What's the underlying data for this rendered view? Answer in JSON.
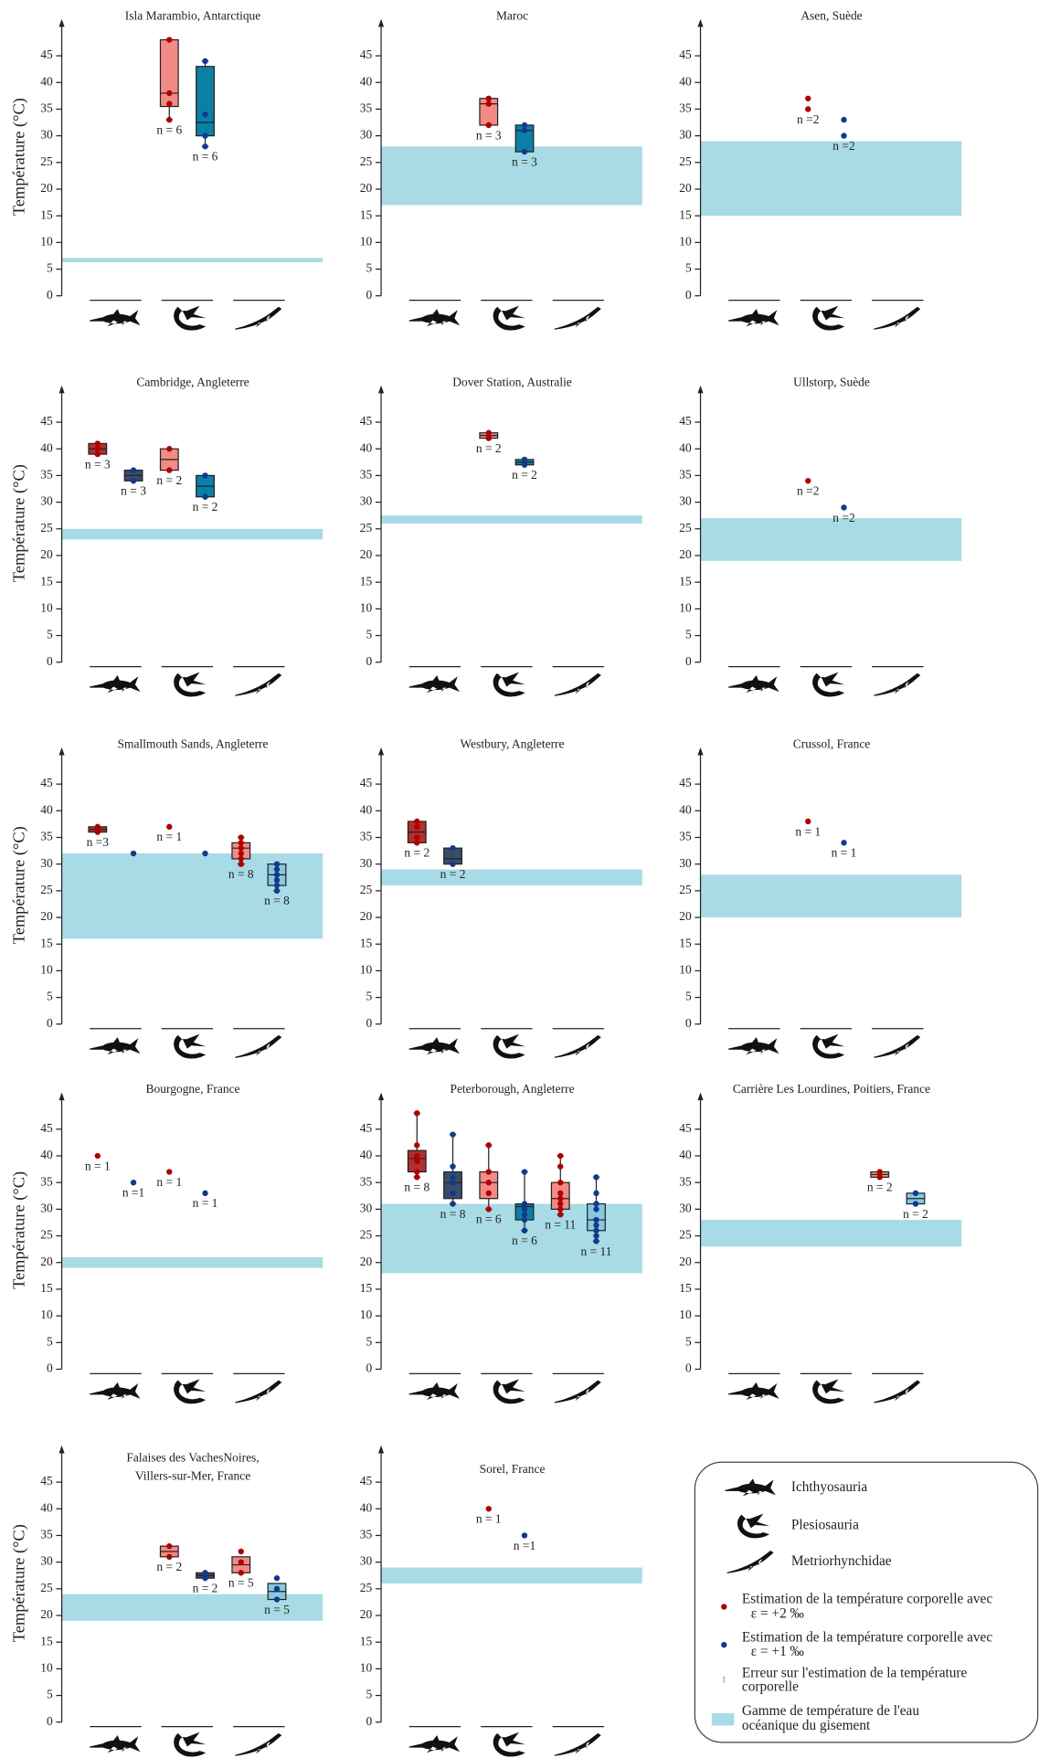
{
  "chart_data": [
    {
      "type": "box",
      "title": "Isla Marambio, Antarctique",
      "ylabel": "Température (°C)",
      "ylim": [
        0,
        50
      ],
      "yticks": [
        0,
        5,
        10,
        15,
        20,
        25,
        30,
        35,
        40,
        45
      ],
      "band": [
        6.3,
        7.1
      ],
      "series": [
        {
          "color": "#b00000",
          "groups": [
            null,
            {
              "points": [
                48,
                38,
                36,
                33
              ],
              "box": [
                35.5,
                38,
                48
              ],
              "whiskers": [
                33,
                48
              ],
              "fill": "#f28b86",
              "n_label": "n = 6"
            },
            null
          ]
        },
        {
          "color": "#123a8a",
          "groups": [
            null,
            {
              "points": [
                44,
                34,
                30,
                28
              ],
              "box": [
                30,
                32.5,
                43
              ],
              "whiskers": [
                28,
                44
              ],
              "fill": "#0b7fa6",
              "n_label": "n = 6"
            },
            null
          ]
        }
      ]
    },
    {
      "type": "box",
      "title": "Maroc",
      "ylim": [
        0,
        50
      ],
      "yticks": [
        0,
        5,
        10,
        15,
        20,
        25,
        30,
        35,
        40,
        45
      ],
      "band": [
        17,
        28
      ],
      "series": [
        {
          "color": "#b00000",
          "groups": [
            null,
            {
              "points": [
                37,
                36,
                32
              ],
              "box": [
                32,
                36,
                37
              ],
              "fill": "#f28b86",
              "n_label": "n = 3"
            },
            null
          ]
        },
        {
          "color": "#123a8a",
          "groups": [
            null,
            {
              "points": [
                32,
                31,
                27
              ],
              "box": [
                27,
                31,
                32
              ],
              "fill": "#0b7fa6",
              "n_label": "n = 3"
            },
            null
          ]
        }
      ]
    },
    {
      "type": "box",
      "title": "Asen, Suède",
      "ylim": [
        0,
        50
      ],
      "yticks": [
        0,
        5,
        10,
        15,
        20,
        25,
        30,
        35,
        40,
        45
      ],
      "band": [
        15,
        29
      ],
      "series": [
        {
          "color": "#b00000",
          "groups": [
            null,
            {
              "points": [
                37,
                35
              ],
              "n_label": "n =2"
            },
            null
          ]
        },
        {
          "color": "#123a8a",
          "groups": [
            null,
            {
              "points": [
                33,
                30
              ],
              "n_label": "n =2"
            },
            null
          ]
        }
      ]
    },
    {
      "type": "box",
      "title": "Cambridge, Angleterre",
      "ylabel": "Température (°C)",
      "ylim": [
        0,
        50
      ],
      "yticks": [
        0,
        5,
        10,
        15,
        20,
        25,
        30,
        35,
        40,
        45
      ],
      "band": [
        23,
        25
      ],
      "series": [
        {
          "color": "#b00000",
          "groups": [
            {
              "points": [
                41,
                40,
                39
              ],
              "box": [
                39,
                40,
                41
              ],
              "fill": "#b03030",
              "n_label": "n = 3"
            },
            {
              "points": [
                40,
                36
              ],
              "box": [
                36,
                38,
                40
              ],
              "fill": "#f28b86",
              "n_label": "n = 2"
            },
            null
          ]
        },
        {
          "color": "#123a8a",
          "groups": [
            {
              "points": [
                36,
                34
              ],
              "box": [
                34,
                35,
                36
              ],
              "fill": "#3b4b6b",
              "n_label": "n = 3"
            },
            {
              "points": [
                35,
                31
              ],
              "box": [
                31,
                33,
                35
              ],
              "fill": "#0b7fa6",
              "n_label": "n = 2"
            },
            null
          ]
        }
      ]
    },
    {
      "type": "box",
      "title": "Dover Station, Australie",
      "ylim": [
        0,
        50
      ],
      "yticks": [
        0,
        5,
        10,
        15,
        20,
        25,
        30,
        35,
        40,
        45
      ],
      "band": [
        26,
        27.5
      ],
      "series": [
        {
          "color": "#b00000",
          "groups": [
            null,
            {
              "points": [
                43,
                42
              ],
              "box": [
                42,
                42.5,
                43
              ],
              "fill": "#f28b86",
              "n_label": "n = 2"
            },
            null
          ]
        },
        {
          "color": "#123a8a",
          "groups": [
            null,
            {
              "points": [
                38,
                37
              ],
              "box": [
                37,
                37.5,
                38
              ],
              "fill": "#0b7fa6",
              "n_label": "n = 2"
            },
            null
          ]
        }
      ]
    },
    {
      "type": "box",
      "title": "Ullstorp, Suède",
      "ylim": [
        0,
        50
      ],
      "yticks": [
        0,
        5,
        10,
        15,
        20,
        25,
        30,
        35,
        40,
        45
      ],
      "band": [
        19,
        27
      ],
      "series": [
        {
          "color": "#b00000",
          "groups": [
            null,
            {
              "points": [
                34
              ],
              "n_label": "n =2"
            },
            null
          ]
        },
        {
          "color": "#123a8a",
          "groups": [
            null,
            {
              "points": [
                29
              ],
              "n_label": "n =2"
            },
            null
          ]
        }
      ]
    },
    {
      "type": "box",
      "title": "Smallmouth Sands, Angleterre",
      "ylabel": "Température (°C)",
      "ylim": [
        0,
        50
      ],
      "yticks": [
        0,
        5,
        10,
        15,
        20,
        25,
        30,
        35,
        40,
        45
      ],
      "band": [
        16,
        32
      ],
      "series": [
        {
          "color": "#b00000",
          "groups": [
            {
              "points": [
                37,
                36
              ],
              "box": [
                36,
                36.5,
                37
              ],
              "fill": "#b03030",
              "n_label": "n =3"
            },
            {
              "points": [
                37
              ],
              "n_label": "n = 1"
            },
            {
              "points": [
                35,
                34,
                33,
                32,
                31,
                30
              ],
              "box": [
                31,
                33,
                34
              ],
              "whiskers": [
                30,
                35
              ],
              "fill": "#f28b86",
              "n_label": "n = 8"
            }
          ]
        },
        {
          "color": "#123a8a",
          "groups": [
            {
              "points": [
                32
              ]
            },
            {
              "points": [
                32
              ]
            },
            {
              "points": [
                30,
                29,
                28,
                27,
                26,
                25
              ],
              "box": [
                26,
                28,
                30
              ],
              "whiskers": [
                25,
                30
              ],
              "fill": "#86c8e2",
              "n_label": "n = 8"
            }
          ]
        }
      ]
    },
    {
      "type": "box",
      "title": "Westbury, Angleterre",
      "ylim": [
        0,
        50
      ],
      "yticks": [
        0,
        5,
        10,
        15,
        20,
        25,
        30,
        35,
        40,
        45
      ],
      "band": [
        26,
        29
      ],
      "series": [
        {
          "color": "#b00000",
          "groups": [
            {
              "points": [
                38,
                37,
                35,
                34
              ],
              "box": [
                34,
                36,
                38
              ],
              "fill": "#b03030",
              "n_label": "n = 2"
            },
            null,
            null
          ]
        },
        {
          "color": "#123a8a",
          "groups": [
            {
              "points": [
                33,
                30
              ],
              "box": [
                30,
                31,
                33
              ],
              "fill": "#3b4b6b",
              "n_label": "n = 2"
            },
            null,
            null
          ]
        }
      ]
    },
    {
      "type": "box",
      "title": "Crussol, France",
      "ylim": [
        0,
        50
      ],
      "yticks": [
        0,
        5,
        10,
        15,
        20,
        25,
        30,
        35,
        40,
        45
      ],
      "band": [
        20,
        28
      ],
      "series": [
        {
          "color": "#b00000",
          "groups": [
            null,
            {
              "points": [
                38
              ],
              "n_label": "n = 1"
            },
            null
          ]
        },
        {
          "color": "#123a8a",
          "groups": [
            null,
            {
              "points": [
                34
              ],
              "n_label": "n = 1"
            },
            null
          ]
        }
      ]
    },
    {
      "type": "box",
      "title": "Bourgogne, France",
      "ylabel": "Température (°C)",
      "ylim": [
        0,
        50
      ],
      "yticks": [
        0,
        5,
        10,
        15,
        20,
        25,
        30,
        35,
        40,
        45
      ],
      "band": [
        19,
        21
      ],
      "series": [
        {
          "color": "#b00000",
          "groups": [
            {
              "points": [
                40
              ],
              "n_label": "n = 1"
            },
            {
              "points": [
                37
              ],
              "n_label": "n = 1"
            },
            null
          ]
        },
        {
          "color": "#123a8a",
          "groups": [
            {
              "points": [
                35
              ],
              "n_label": "n =1"
            },
            {
              "points": [
                33
              ],
              "n_label": "n = 1"
            },
            null
          ]
        }
      ]
    },
    {
      "type": "box",
      "title": "Peterborough, Angleterre",
      "ylim": [
        0,
        50
      ],
      "yticks": [
        0,
        5,
        10,
        15,
        20,
        25,
        30,
        35,
        40,
        45
      ],
      "band": [
        18,
        31
      ],
      "series": [
        {
          "color": "#b00000",
          "groups": [
            {
              "points": [
                48,
                42,
                40,
                39,
                37,
                36
              ],
              "box": [
                37,
                39.5,
                41
              ],
              "whiskers": [
                36,
                48
              ],
              "fill": "#b03030",
              "n_label": "n = 8"
            },
            {
              "points": [
                42,
                37,
                35,
                33,
                30
              ],
              "box": [
                32,
                35,
                37
              ],
              "whiskers": [
                30,
                42
              ],
              "fill": "#f28b86",
              "n_label": "n = 6"
            },
            {
              "points": [
                40,
                38,
                35,
                33,
                32,
                31,
                30,
                29
              ],
              "box": [
                30,
                32,
                35
              ],
              "whiskers": [
                29,
                40
              ],
              "fill": "#f28b86",
              "n_label": "n = 11"
            }
          ]
        },
        {
          "color": "#123a8a",
          "groups": [
            {
              "points": [
                44,
                38,
                36,
                35,
                33,
                31
              ],
              "box": [
                32,
                35,
                37
              ],
              "whiskers": [
                31,
                44
              ],
              "fill": "#3b4b6b",
              "n_label": "n = 8"
            },
            {
              "points": [
                37,
                31,
                30,
                29,
                28,
                26
              ],
              "box": [
                28,
                30.5,
                31
              ],
              "whiskers": [
                26,
                37
              ],
              "fill": "#0b7fa6",
              "n_label": "n = 6"
            },
            {
              "points": [
                36,
                33,
                31,
                30,
                28,
                27,
                26,
                25,
                24
              ],
              "box": [
                26,
                28,
                31
              ],
              "whiskers": [
                24,
                36
              ],
              "fill": "#86c8e2",
              "n_label": "n = 11"
            }
          ]
        }
      ]
    },
    {
      "type": "box",
      "title": "Carrière Les Lourdines, Poitiers, France",
      "ylim": [
        0,
        50
      ],
      "yticks": [
        0,
        5,
        10,
        15,
        20,
        25,
        30,
        35,
        40,
        45
      ],
      "band": [
        23,
        28
      ],
      "series": [
        {
          "color": "#b00000",
          "groups": [
            null,
            null,
            {
              "points": [
                37,
                36
              ],
              "box": [
                36,
                36.5,
                37
              ],
              "fill": "#f28b86",
              "n_label": "n = 2"
            }
          ]
        },
        {
          "color": "#123a8a",
          "groups": [
            null,
            null,
            {
              "points": [
                33,
                31
              ],
              "box": [
                31,
                32,
                33
              ],
              "fill": "#86c8e2",
              "n_label": "n = 2"
            }
          ]
        }
      ]
    },
    {
      "type": "box",
      "title": [
        "Falaises des VachesNoires,",
        "Villers-sur-Mer, France"
      ],
      "ylabel": "Température (°C)",
      "ylim": [
        0,
        50
      ],
      "yticks": [
        0,
        5,
        10,
        15,
        20,
        25,
        30,
        35,
        40,
        45
      ],
      "band": [
        19,
        24
      ],
      "series": [
        {
          "color": "#b00000",
          "groups": [
            null,
            {
              "points": [
                33,
                31
              ],
              "box": [
                31,
                32,
                33
              ],
              "fill": "#f28b86",
              "n_label": "n = 2"
            },
            {
              "points": [
                32,
                30,
                28
              ],
              "box": [
                28,
                29.5,
                31
              ],
              "fill": "#f28b86",
              "n_label": "n = 5"
            }
          ]
        },
        {
          "color": "#123a8a",
          "groups": [
            null,
            {
              "points": [
                28,
                27
              ],
              "box": [
                27,
                27.5,
                28
              ],
              "fill": "#3b4b6b",
              "n_label": "n = 2"
            },
            {
              "points": [
                27,
                25,
                23
              ],
              "box": [
                23,
                24.5,
                26
              ],
              "fill": "#86c8e2",
              "n_label": "n = 5"
            }
          ]
        }
      ]
    },
    {
      "type": "box",
      "title": "Sorel, France",
      "ylim": [
        0,
        50
      ],
      "yticks": [
        0,
        5,
        10,
        15,
        20,
        25,
        30,
        35,
        40,
        45
      ],
      "band": [
        26,
        29
      ],
      "series": [
        {
          "color": "#b00000",
          "groups": [
            null,
            {
              "points": [
                40
              ],
              "n_label": "n = 1"
            },
            null
          ]
        },
        {
          "color": "#123a8a",
          "groups": [
            null,
            {
              "points": [
                35
              ],
              "n_label": "n =1"
            },
            null
          ]
        }
      ]
    }
  ],
  "band_color": "#a8dbe5",
  "legend": {
    "taxa": [
      "Ichthyosauria",
      "Plesiosauria",
      "Metriorhynchidae"
    ],
    "estimates": [
      {
        "color": "#b00000",
        "label": [
          "Estimation de la température corporelle avec",
          "ε = +2 ‰"
        ]
      },
      {
        "color": "#123a8a",
        "label": [
          "Estimation de la température corporelle avec",
          "ε = +1 ‰"
        ]
      }
    ],
    "error": [
      "Erreur sur l'estimation de la température",
      "corporelle"
    ],
    "band": [
      "Gamme de température de l'eau",
      "océanique du gisement"
    ]
  }
}
